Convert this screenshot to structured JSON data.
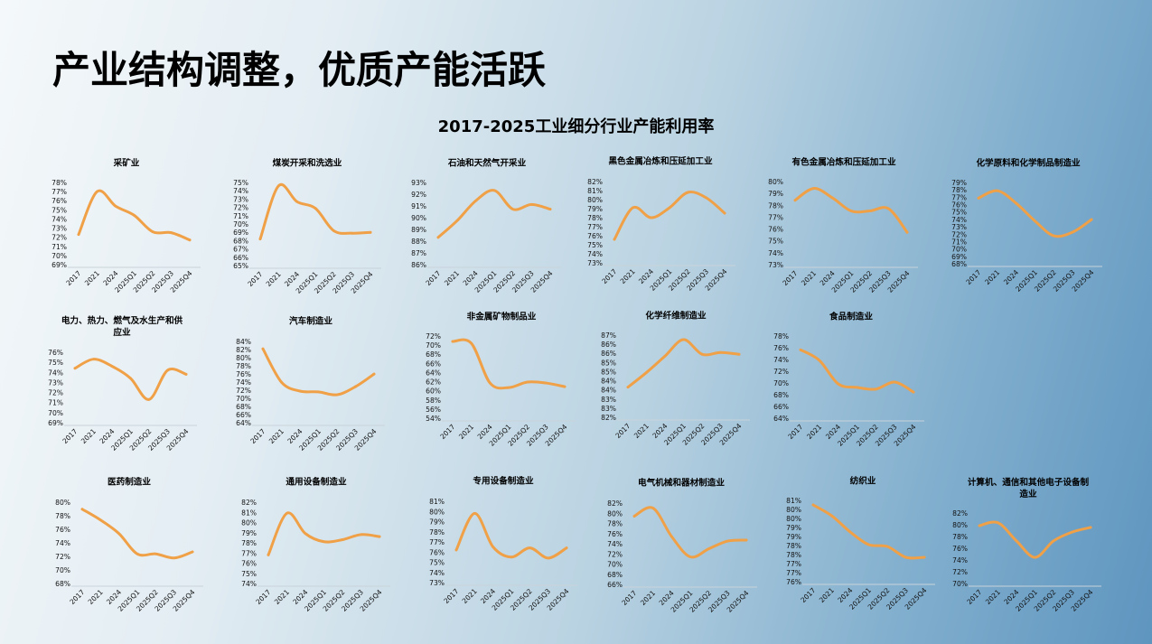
{
  "page": {
    "title": "产业结构调整，优质产能活跃",
    "subtitle": "2017-2025工业细分行业产能利用率"
  },
  "colors": {
    "line": "#f0a046",
    "axis": "#c9d3da",
    "text": "#000000"
  },
  "chart_data": [
    {
      "type": "line",
      "title": "采矿业",
      "categories": [
        "2017",
        "2021",
        "2024",
        "2025Q1",
        "2025Q2",
        "2025Q3",
        "2025Q4"
      ],
      "values": [
        72.4,
        77.1,
        75.5,
        74.5,
        72.7,
        72.6,
        71.8
      ],
      "ylim": [
        69,
        78
      ],
      "yticks": [
        "78%",
        "77%",
        "76%",
        "75%",
        "74%",
        "73%",
        "72%",
        "71%",
        "70%",
        "69%"
      ]
    },
    {
      "type": "line",
      "title": "煤炭开采和洗选业",
      "categories": [
        "2017",
        "2021",
        "2024",
        "2025Q1",
        "2025Q2",
        "2025Q3",
        "2025Q4"
      ],
      "values": [
        68.3,
        74.7,
        72.8,
        72.0,
        69.3,
        69.0,
        69.1
      ],
      "ylim": [
        65,
        75
      ],
      "yticks": [
        "75%",
        "74%",
        "73%",
        "72%",
        "71%",
        "70%",
        "69%",
        "68%",
        "67%",
        "66%",
        "65%"
      ]
    },
    {
      "type": "line",
      "title": "石油和天然气开采业",
      "categories": [
        "2017",
        "2021",
        "2024",
        "2025Q1",
        "2025Q2",
        "2025Q3",
        "2025Q4"
      ],
      "values": [
        88.4,
        89.8,
        91.5,
        92.4,
        90.8,
        91.2,
        90.8
      ],
      "ylim": [
        86,
        93
      ],
      "yticks": [
        "93%",
        "92%",
        "91%",
        "90%",
        "89%",
        "88%",
        "87%",
        "86%"
      ]
    },
    {
      "type": "line",
      "title": "黑色金属冶炼和压延加工业",
      "categories": [
        "2017",
        "2021",
        "2024",
        "2025Q1",
        "2025Q2",
        "2025Q3",
        "2025Q4"
      ],
      "values": [
        75.7,
        79.2,
        78.1,
        79.2,
        80.9,
        80.3,
        78.6
      ],
      "ylim": [
        73,
        82
      ],
      "yticks": [
        "82%",
        "81%",
        "80%",
        "79%",
        "78%",
        "77%",
        "76%",
        "75%",
        "74%",
        "73%"
      ]
    },
    {
      "type": "line",
      "title": "有色金属冶炼和压延加工业",
      "categories": [
        "2017",
        "2021",
        "2024",
        "2025Q1",
        "2025Q2",
        "2025Q3",
        "2025Q4"
      ],
      "values": [
        78.5,
        79.5,
        78.7,
        77.6,
        77.6,
        77.8,
        75.8
      ],
      "ylim": [
        73,
        80
      ],
      "yticks": [
        "80%",
        "79%",
        "78%",
        "77%",
        "76%",
        "75%",
        "74%",
        "73%"
      ]
    },
    {
      "type": "line",
      "title": "化学原料和化学制品制造业",
      "categories": [
        "2017",
        "2021",
        "2024",
        "2025Q1",
        "2025Q2",
        "2025Q3",
        "2025Q4"
      ],
      "values": [
        77.0,
        78.0,
        76.3,
        73.9,
        71.9,
        72.4,
        74.1
      ],
      "ylim": [
        68,
        79
      ],
      "yticks": [
        "79%",
        "78%",
        "77%",
        "76%",
        "75%",
        "74%",
        "73%",
        "72%",
        "71%",
        "70%",
        "69%",
        "68%"
      ]
    },
    {
      "type": "line",
      "title": "电力、热力、燃气及水生产和供应业",
      "categories": [
        "2017",
        "2021",
        "2024",
        "2025Q1",
        "2025Q2",
        "2025Q3",
        "2025Q4"
      ],
      "values": [
        74.5,
        75.4,
        74.7,
        73.5,
        71.4,
        74.3,
        73.9
      ],
      "ylim": [
        69,
        76
      ],
      "yticks": [
        "76%",
        "75%",
        "74%",
        "73%",
        "72%",
        "71%",
        "70%",
        "69%"
      ]
    },
    {
      "type": "line",
      "title": "汽车制造业",
      "categories": [
        "2017",
        "2021",
        "2024",
        "2025Q1",
        "2025Q2",
        "2025Q3",
        "2025Q4"
      ],
      "values": [
        82.4,
        74.2,
        72.0,
        71.8,
        71.1,
        73.1,
        76.2
      ],
      "ylim": [
        64,
        84
      ],
      "yticks": [
        "84%",
        "82%",
        "80%",
        "78%",
        "76%",
        "74%",
        "72%",
        "70%",
        "68%",
        "66%",
        "64%"
      ]
    },
    {
      "type": "line",
      "title": "非金属矿物制品业",
      "categories": [
        "2017",
        "2021",
        "2024",
        "2025Q1",
        "2025Q2",
        "2025Q3",
        "2025Q4"
      ],
      "values": [
        71.0,
        70.6,
        61.9,
        60.9,
        62.1,
        61.9,
        61.1
      ],
      "ylim": [
        54,
        72
      ],
      "yticks": [
        "72%",
        "70%",
        "68%",
        "66%",
        "64%",
        "62%",
        "60%",
        "58%",
        "56%",
        "54%"
      ]
    },
    {
      "type": "line",
      "title": "化学纤维制造业",
      "categories": [
        "2017",
        "2021",
        "2024",
        "2025Q1",
        "2025Q2",
        "2025Q3",
        "2025Q4"
      ],
      "values": [
        83.7,
        84.5,
        85.4,
        86.3,
        85.5,
        85.6,
        85.5
      ],
      "ylim": [
        82,
        86.5
      ],
      "yticks": [
        "87%",
        "86%",
        "86%",
        "85%",
        "85%",
        "84%",
        "84%",
        "83%",
        "83%",
        "82%"
      ]
    },
    {
      "type": "line",
      "title": "食品制造业",
      "categories": [
        "2017",
        "2021",
        "2024",
        "2025Q1",
        "2025Q2",
        "2025Q3",
        "2025Q4"
      ],
      "values": [
        75.8,
        74.0,
        70.0,
        69.4,
        69.1,
        70.3,
        68.6
      ],
      "ylim": [
        64,
        78
      ],
      "yticks": [
        "78%",
        "76%",
        "74%",
        "72%",
        "70%",
        "68%",
        "66%",
        "64%"
      ]
    },
    {
      "type": "line",
      "title": "医药制造业",
      "categories": [
        "2017",
        "2021",
        "2024",
        "2025Q1",
        "2025Q2",
        "2025Q3",
        "2025Q4"
      ],
      "values": [
        79.1,
        77.5,
        75.5,
        72.5,
        72.5,
        71.9,
        72.8
      ],
      "ylim": [
        68,
        80
      ],
      "yticks": [
        "80%",
        "78%",
        "76%",
        "74%",
        "72%",
        "70%",
        "68%"
      ]
    },
    {
      "type": "line",
      "title": "通用设备制造业",
      "categories": [
        "2017",
        "2021",
        "2024",
        "2025Q1",
        "2025Q2",
        "2025Q3",
        "2025Q4"
      ],
      "values": [
        76.9,
        81.0,
        79.0,
        78.2,
        78.4,
        78.9,
        78.7
      ],
      "ylim": [
        74,
        82
      ],
      "yticks": [
        "82%",
        "81%",
        "80%",
        "79%",
        "78%",
        "77%",
        "76%",
        "75%",
        "74%"
      ]
    },
    {
      "type": "line",
      "title": "专用设备制造业",
      "categories": [
        "2017",
        "2021",
        "2024",
        "2025Q1",
        "2025Q2",
        "2025Q3",
        "2025Q4"
      ],
      "values": [
        76.3,
        79.9,
        76.6,
        75.6,
        76.5,
        75.5,
        76.5
      ],
      "ylim": [
        73,
        81
      ],
      "yticks": [
        "81%",
        "80%",
        "79%",
        "78%",
        "77%",
        "76%",
        "75%",
        "74%",
        "73%"
      ]
    },
    {
      "type": "line",
      "title": "电气机械和器材制造业",
      "categories": [
        "2017",
        "2021",
        "2024",
        "2025Q1",
        "2025Q2",
        "2025Q3",
        "2025Q4"
      ],
      "values": [
        79.6,
        81.2,
        75.6,
        71.6,
        73.2,
        74.7,
        74.9
      ],
      "ylim": [
        66,
        82
      ],
      "yticks": [
        "82%",
        "80%",
        "78%",
        "76%",
        "74%",
        "72%",
        "70%",
        "68%",
        "66%"
      ]
    },
    {
      "type": "line",
      "title": "纺织业",
      "categories": [
        "2017",
        "2021",
        "2024",
        "2025Q1",
        "2025Q2",
        "2025Q3",
        "2025Q4"
      ],
      "values": [
        80.3,
        79.7,
        78.8,
        78.1,
        78.0,
        77.4,
        77.4
      ],
      "ylim": [
        76,
        80.5
      ],
      "yticks": [
        "81%",
        "80%",
        "80%",
        "79%",
        "79%",
        "78%",
        "78%",
        "77%",
        "77%",
        "76%"
      ]
    },
    {
      "type": "line",
      "title": "计算机、通信和其他电子设备制造业",
      "categories": [
        "2017",
        "2021",
        "2024",
        "2025Q1",
        "2025Q2",
        "2025Q3",
        "2025Q4"
      ],
      "values": [
        80.0,
        80.5,
        77.4,
        74.6,
        77.4,
        78.9,
        79.7
      ],
      "ylim": [
        70,
        82
      ],
      "yticks": [
        "82%",
        "80%",
        "78%",
        "76%",
        "74%",
        "72%",
        "70%"
      ]
    }
  ]
}
